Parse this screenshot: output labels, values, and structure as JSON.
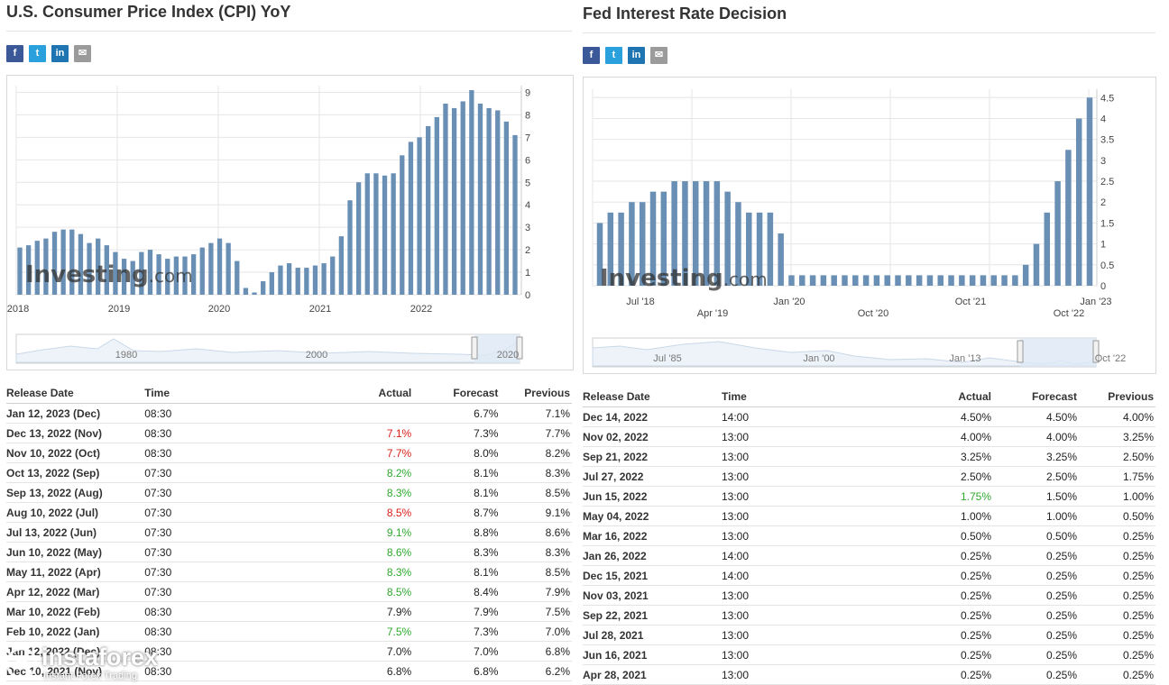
{
  "left": {
    "title": "U.S. Consumer Price Index (CPI) YoY",
    "share": {
      "facebook": "f",
      "twitter": "t",
      "linkedin": "in",
      "email": "✉"
    },
    "watermark": {
      "main": "Investing",
      "suffix": ".com"
    },
    "chart_data": {
      "type": "bar",
      "title": "U.S. Consumer Price Index (CPI) YoY",
      "ylim": [
        0,
        9.3
      ],
      "yticks": [
        0,
        1,
        2,
        3,
        4,
        5,
        6,
        7,
        8,
        9
      ],
      "x_tick_labels": [
        "2018",
        "2019",
        "2020",
        "2021",
        "2022"
      ],
      "navigator_labels": [
        "1980",
        "2000",
        "2020"
      ],
      "values": [
        2.1,
        2.2,
        2.4,
        2.5,
        2.8,
        2.9,
        2.9,
        2.7,
        2.3,
        2.5,
        2.2,
        1.9,
        1.6,
        1.5,
        1.9,
        2.0,
        1.8,
        1.6,
        1.7,
        1.7,
        1.8,
        2.1,
        2.3,
        2.5,
        2.3,
        1.5,
        0.3,
        0.1,
        0.6,
        1.0,
        1.3,
        1.4,
        1.2,
        1.2,
        1.3,
        1.4,
        1.7,
        2.6,
        4.2,
        5.0,
        5.4,
        5.4,
        5.3,
        5.4,
        6.2,
        6.8,
        7.0,
        7.5,
        7.9,
        8.5,
        8.3,
        8.6,
        9.1,
        8.5,
        8.3,
        8.2,
        7.7,
        7.1
      ]
    },
    "table": {
      "headers": {
        "date": "Release Date",
        "time": "Time",
        "actual": "Actual",
        "forecast": "Forecast",
        "previous": "Previous"
      },
      "rows": [
        {
          "date": "Jan 12, 2023 (Dec)",
          "time": "08:30",
          "actual": "",
          "forecast": "6.7%",
          "previous": "7.1%",
          "color": ""
        },
        {
          "date": "Dec 13, 2022 (Nov)",
          "time": "08:30",
          "actual": "7.1%",
          "forecast": "7.3%",
          "previous": "7.7%",
          "color": "red"
        },
        {
          "date": "Nov 10, 2022 (Oct)",
          "time": "08:30",
          "actual": "7.7%",
          "forecast": "8.0%",
          "previous": "8.2%",
          "color": "red"
        },
        {
          "date": "Oct 13, 2022 (Sep)",
          "time": "07:30",
          "actual": "8.2%",
          "forecast": "8.1%",
          "previous": "8.3%",
          "color": "green"
        },
        {
          "date": "Sep 13, 2022 (Aug)",
          "time": "07:30",
          "actual": "8.3%",
          "forecast": "8.1%",
          "previous": "8.5%",
          "color": "green"
        },
        {
          "date": "Aug 10, 2022 (Jul)",
          "time": "07:30",
          "actual": "8.5%",
          "forecast": "8.7%",
          "previous": "9.1%",
          "color": "red"
        },
        {
          "date": "Jul 13, 2022 (Jun)",
          "time": "07:30",
          "actual": "9.1%",
          "forecast": "8.8%",
          "previous": "8.6%",
          "color": "green"
        },
        {
          "date": "Jun 10, 2022 (May)",
          "time": "07:30",
          "actual": "8.6%",
          "forecast": "8.3%",
          "previous": "8.3%",
          "color": "green"
        },
        {
          "date": "May 11, 2022 (Apr)",
          "time": "07:30",
          "actual": "8.3%",
          "forecast": "8.1%",
          "previous": "8.5%",
          "color": "green"
        },
        {
          "date": "Apr 12, 2022 (Mar)",
          "time": "07:30",
          "actual": "8.5%",
          "forecast": "8.4%",
          "previous": "7.9%",
          "color": "green"
        },
        {
          "date": "Mar 10, 2022 (Feb)",
          "time": "08:30",
          "actual": "7.9%",
          "forecast": "7.9%",
          "previous": "7.5%",
          "color": ""
        },
        {
          "date": "Feb 10, 2022 (Jan)",
          "time": "08:30",
          "actual": "7.5%",
          "forecast": "7.3%",
          "previous": "7.0%",
          "color": "green"
        },
        {
          "date": "Jan 12, 2022 (Dec)",
          "time": "08:30",
          "actual": "7.0%",
          "forecast": "7.0%",
          "previous": "6.8%",
          "color": ""
        },
        {
          "date": "Dec 10, 2021 (Nov)",
          "time": "08:30",
          "actual": "6.8%",
          "forecast": "6.8%",
          "previous": "6.2%",
          "color": ""
        }
      ]
    }
  },
  "right": {
    "title": "Fed Interest Rate Decision",
    "share": {
      "facebook": "f",
      "twitter": "t",
      "linkedin": "in",
      "email": "✉"
    },
    "watermark": {
      "main": "Investing",
      "suffix": ".com"
    },
    "chart_data": {
      "type": "bar",
      "title": "Fed Interest Rate Decision",
      "ylim": [
        0,
        4.7
      ],
      "yticks": [
        0,
        0.5,
        1,
        1.5,
        2,
        2.5,
        3,
        3.5,
        4,
        4.5
      ],
      "x_tick_labels_upper": [
        "Jul '18",
        "Jan '20",
        "Oct '21",
        "Jan '23"
      ],
      "x_tick_labels_lower": [
        "Apr '19",
        "Oct '20",
        "Oct '22"
      ],
      "navigator_labels": [
        "Jul '85",
        "Jan '00",
        "Jan '13",
        "Oct '22"
      ],
      "values": [
        1.5,
        1.75,
        1.75,
        2.0,
        2.0,
        2.25,
        2.25,
        2.5,
        2.5,
        2.5,
        2.5,
        2.5,
        2.25,
        2.0,
        1.75,
        1.75,
        1.75,
        1.25,
        0.25,
        0.25,
        0.25,
        0.25,
        0.25,
        0.25,
        0.25,
        0.25,
        0.25,
        0.25,
        0.25,
        0.25,
        0.25,
        0.25,
        0.25,
        0.25,
        0.25,
        0.25,
        0.25,
        0.25,
        0.25,
        0.25,
        0.5,
        1.0,
        1.75,
        2.5,
        3.25,
        4.0,
        4.5
      ]
    },
    "table": {
      "headers": {
        "date": "Release Date",
        "time": "Time",
        "actual": "Actual",
        "forecast": "Forecast",
        "previous": "Previous"
      },
      "rows": [
        {
          "date": "Dec 14, 2022",
          "time": "14:00",
          "actual": "4.50%",
          "forecast": "4.50%",
          "previous": "4.00%",
          "color": ""
        },
        {
          "date": "Nov 02, 2022",
          "time": "13:00",
          "actual": "4.00%",
          "forecast": "4.00%",
          "previous": "3.25%",
          "color": ""
        },
        {
          "date": "Sep 21, 2022",
          "time": "13:00",
          "actual": "3.25%",
          "forecast": "3.25%",
          "previous": "2.50%",
          "color": ""
        },
        {
          "date": "Jul 27, 2022",
          "time": "13:00",
          "actual": "2.50%",
          "forecast": "2.50%",
          "previous": "1.75%",
          "color": ""
        },
        {
          "date": "Jun 15, 2022",
          "time": "13:00",
          "actual": "1.75%",
          "forecast": "1.50%",
          "previous": "1.00%",
          "color": "green"
        },
        {
          "date": "May 04, 2022",
          "time": "13:00",
          "actual": "1.00%",
          "forecast": "1.00%",
          "previous": "0.50%",
          "color": ""
        },
        {
          "date": "Mar 16, 2022",
          "time": "13:00",
          "actual": "0.50%",
          "forecast": "0.50%",
          "previous": "0.25%",
          "color": ""
        },
        {
          "date": "Jan 26, 2022",
          "time": "14:00",
          "actual": "0.25%",
          "forecast": "0.25%",
          "previous": "0.25%",
          "color": ""
        },
        {
          "date": "Dec 15, 2021",
          "time": "14:00",
          "actual": "0.25%",
          "forecast": "0.25%",
          "previous": "0.25%",
          "color": ""
        },
        {
          "date": "Nov 03, 2021",
          "time": "13:00",
          "actual": "0.25%",
          "forecast": "0.25%",
          "previous": "0.25%",
          "color": ""
        },
        {
          "date": "Sep 22, 2021",
          "time": "13:00",
          "actual": "0.25%",
          "forecast": "0.25%",
          "previous": "0.25%",
          "color": ""
        },
        {
          "date": "Jul 28, 2021",
          "time": "13:00",
          "actual": "0.25%",
          "forecast": "0.25%",
          "previous": "0.25%",
          "color": ""
        },
        {
          "date": "Jun 16, 2021",
          "time": "13:00",
          "actual": "0.25%",
          "forecast": "0.25%",
          "previous": "0.25%",
          "color": ""
        },
        {
          "date": "Apr 28, 2021",
          "time": "13:00",
          "actual": "0.25%",
          "forecast": "0.25%",
          "previous": "0.25%",
          "color": ""
        }
      ]
    }
  },
  "brand": {
    "name": "instaforex",
    "tagline": "Instant Forex Trading"
  },
  "colors": {
    "bar": "#6a8fb5",
    "grid": "#e6e6e6",
    "navfill": "#dde9f5",
    "navline": "#8fb3d6"
  }
}
